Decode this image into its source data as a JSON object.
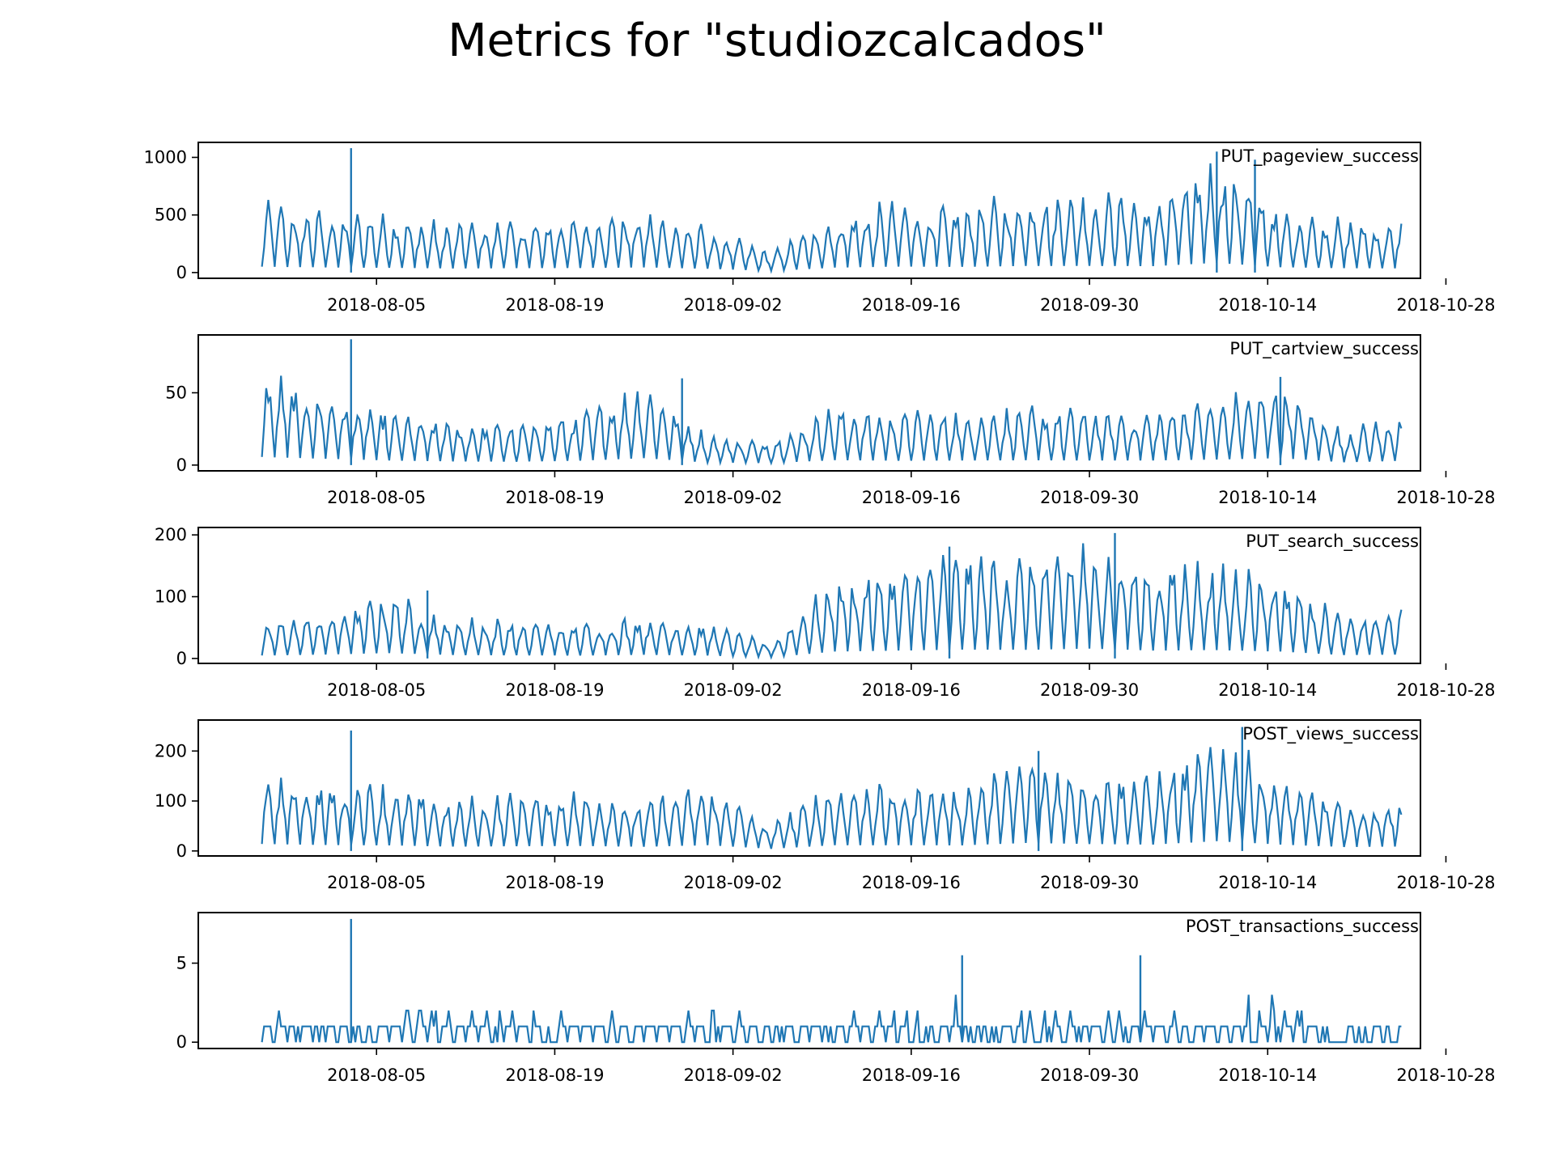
{
  "title": "Metrics for \"studiozcalcados\"",
  "line_color": "#1f77b4",
  "chart_data": [
    {
      "type": "line",
      "label": "PUT_pageview_success",
      "x_ticks": [
        "2018-08-05",
        "2018-08-19",
        "2018-09-02",
        "2018-09-16",
        "2018-09-30",
        "2018-10-14",
        "2018-10-28"
      ],
      "xlim": [
        "2018-07-22",
        "2018-10-26"
      ],
      "y_ticks": [
        0,
        500,
        1000
      ],
      "ylim": [
        -50,
        1130
      ],
      "x": [
        "2018-07-27",
        "2018-08-01",
        "2018-08-06",
        "2018-08-11",
        "2018-08-16",
        "2018-08-21",
        "2018-08-26",
        "2018-08-31",
        "2018-09-05",
        "2018-09-10",
        "2018-09-15",
        "2018-09-20",
        "2018-09-25",
        "2018-09-30",
        "2018-10-05",
        "2018-10-10",
        "2018-10-15",
        "2018-10-20",
        "2018-10-24"
      ],
      "peaks": [
        640,
        560,
        520,
        450,
        480,
        500,
        560,
        420,
        180,
        540,
        650,
        620,
        720,
        720,
        700,
        1050,
        580,
        480,
        460
      ],
      "spikes": [
        {
          "x": "2018-08-03",
          "y": 1080
        },
        {
          "x": "2018-10-10",
          "y": 1050
        },
        {
          "x": "2018-10-13",
          "y": 980
        }
      ]
    },
    {
      "type": "line",
      "label": "PUT_cartview_success",
      "x_ticks": [
        "2018-08-05",
        "2018-08-19",
        "2018-09-02",
        "2018-09-16",
        "2018-09-30",
        "2018-10-14",
        "2018-10-28"
      ],
      "xlim": [
        "2018-07-22",
        "2018-10-26"
      ],
      "y_ticks": [
        0,
        50
      ],
      "ylim": [
        -4,
        90
      ],
      "x": [
        "2018-07-27",
        "2018-08-01",
        "2018-08-06",
        "2018-08-11",
        "2018-08-16",
        "2018-08-21",
        "2018-08-26",
        "2018-08-31",
        "2018-09-05",
        "2018-09-10",
        "2018-09-15",
        "2018-09-20",
        "2018-09-25",
        "2018-09-30",
        "2018-10-05",
        "2018-10-10",
        "2018-10-15",
        "2018-10-20",
        "2018-10-24"
      ],
      "peaks": [
        70,
        55,
        40,
        32,
        30,
        38,
        60,
        22,
        18,
        43,
        38,
        40,
        42,
        40,
        40,
        48,
        60,
        25,
        36
      ],
      "spikes": [
        {
          "x": "2018-08-03",
          "y": 87
        },
        {
          "x": "2018-10-15",
          "y": 61
        },
        {
          "x": "2018-08-29",
          "y": 60
        }
      ]
    },
    {
      "type": "line",
      "label": "PUT_search_success",
      "x_ticks": [
        "2018-08-05",
        "2018-08-19",
        "2018-09-02",
        "2018-09-16",
        "2018-09-30",
        "2018-10-14",
        "2018-10-28"
      ],
      "xlim": [
        "2018-07-22",
        "2018-10-26"
      ],
      "y_ticks": [
        0,
        100,
        200
      ],
      "ylim": [
        -8,
        212
      ],
      "x": [
        "2018-07-27",
        "2018-08-01",
        "2018-08-06",
        "2018-08-11",
        "2018-08-16",
        "2018-08-21",
        "2018-08-26",
        "2018-08-31",
        "2018-09-05",
        "2018-09-10",
        "2018-09-15",
        "2018-09-20",
        "2018-09-25",
        "2018-09-30",
        "2018-10-05",
        "2018-10-10",
        "2018-10-15",
        "2018-10-20",
        "2018-10-24"
      ],
      "peaks": [
        60,
        80,
        110,
        70,
        65,
        60,
        75,
        60,
        25,
        140,
        160,
        180,
        175,
        200,
        160,
        170,
        140,
        70,
        80
      ],
      "spikes": [
        {
          "x": "2018-08-09",
          "y": 110
        },
        {
          "x": "2018-10-02",
          "y": 203
        },
        {
          "x": "2018-09-19",
          "y": 181
        }
      ]
    },
    {
      "type": "line",
      "label": "POST_views_success",
      "x_ticks": [
        "2018-08-05",
        "2018-08-19",
        "2018-09-02",
        "2018-09-16",
        "2018-09-30",
        "2018-10-14",
        "2018-10-28"
      ],
      "xlim": [
        "2018-07-22",
        "2018-10-26"
      ],
      "y_ticks": [
        0,
        100,
        200
      ],
      "ylim": [
        -10,
        262
      ],
      "x": [
        "2018-07-27",
        "2018-08-01",
        "2018-08-06",
        "2018-08-11",
        "2018-08-16",
        "2018-08-21",
        "2018-08-26",
        "2018-08-31",
        "2018-09-05",
        "2018-09-10",
        "2018-09-15",
        "2018-09-20",
        "2018-09-25",
        "2018-09-30",
        "2018-10-05",
        "2018-10-10",
        "2018-10-15",
        "2018-10-20",
        "2018-10-24"
      ],
      "peaks": [
        175,
        150,
        140,
        110,
        120,
        125,
        105,
        145,
        55,
        145,
        145,
        140,
        200,
        175,
        160,
        245,
        160,
        100,
        110
      ],
      "spikes": [
        {
          "x": "2018-08-03",
          "y": 241
        },
        {
          "x": "2018-10-12",
          "y": 248
        },
        {
          "x": "2018-09-26",
          "y": 200
        }
      ]
    },
    {
      "type": "line",
      "label": "POST_transactions_success",
      "x_ticks": [
        "2018-08-05",
        "2018-08-19",
        "2018-09-02",
        "2018-09-16",
        "2018-09-30",
        "2018-10-14",
        "2018-10-28"
      ],
      "xlim": [
        "2018-07-22",
        "2018-10-26"
      ],
      "y_ticks": [
        0,
        5
      ],
      "ylim": [
        -0.4,
        8.2
      ],
      "x": [
        "2018-07-27",
        "2018-08-01",
        "2018-08-06",
        "2018-08-11",
        "2018-08-16",
        "2018-08-21",
        "2018-08-26",
        "2018-08-31",
        "2018-09-05",
        "2018-09-10",
        "2018-09-15",
        "2018-09-20",
        "2018-09-25",
        "2018-09-30",
        "2018-10-05",
        "2018-10-10",
        "2018-10-15",
        "2018-10-20",
        "2018-10-24"
      ],
      "peaks": [
        3,
        3,
        3,
        3,
        3,
        3,
        3,
        3,
        2,
        3,
        3,
        3,
        3,
        3,
        3,
        3,
        4,
        2,
        3
      ],
      "spikes": [
        {
          "x": "2018-08-03",
          "y": 7.8
        },
        {
          "x": "2018-10-04",
          "y": 5.5
        },
        {
          "x": "2018-09-20",
          "y": 5.5
        }
      ]
    }
  ]
}
